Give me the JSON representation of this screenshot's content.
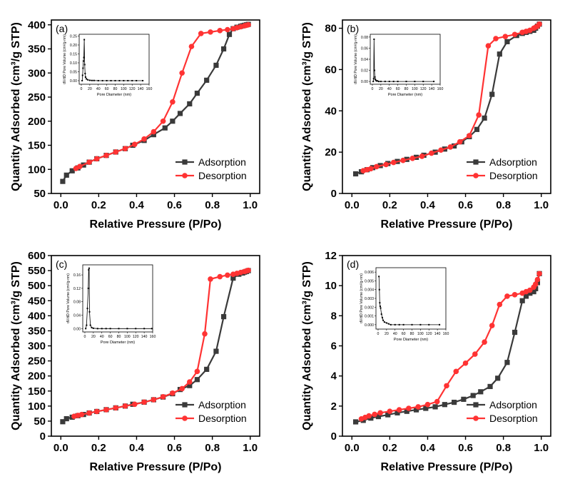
{
  "chart_data": [
    {
      "type": "line",
      "panel_label": "(a)",
      "xlabel": "Relative Pressure (P/Po)",
      "ylabel": "Quantity Adsorbed (cm³/g STP)",
      "xlim": [
        -0.05,
        1.05
      ],
      "ylim": [
        50,
        410
      ],
      "xticks": [
        "0.0",
        "0.2",
        "0.4",
        "0.6",
        "0.8",
        "1.0"
      ],
      "yticks": [
        "50",
        "100",
        "150",
        "200",
        "250",
        "300",
        "350",
        "400"
      ],
      "legend": {
        "position": "bottom-right",
        "entries": [
          "Adsorption",
          "Desorption"
        ]
      },
      "series": [
        {
          "name": "Adsorption",
          "color": "#3a3a3a",
          "marker": "square",
          "x": [
            0.01,
            0.03,
            0.06,
            0.09,
            0.12,
            0.15,
            0.19,
            0.24,
            0.29,
            0.34,
            0.38,
            0.44,
            0.49,
            0.55,
            0.59,
            0.63,
            0.68,
            0.72,
            0.77,
            0.82,
            0.86,
            0.89,
            0.91,
            0.93,
            0.95,
            0.96,
            0.97,
            0.98,
            0.99
          ],
          "y": [
            75,
            88,
            97,
            103,
            109,
            115,
            122,
            129,
            136,
            143,
            150,
            160,
            172,
            186,
            200,
            216,
            236,
            258,
            285,
            316,
            350,
            380,
            392,
            395,
            397,
            398,
            399,
            400,
            401
          ]
        },
        {
          "name": "Desorption",
          "color": "#ff3333",
          "marker": "circle",
          "x": [
            0.08,
            0.1,
            0.15,
            0.19,
            0.24,
            0.29,
            0.34,
            0.39,
            0.44,
            0.49,
            0.54,
            0.59,
            0.64,
            0.69,
            0.74,
            0.79,
            0.84,
            0.88,
            0.91,
            0.93,
            0.95,
            0.97,
            0.98,
            0.99
          ],
          "y": [
            102,
            106,
            115,
            122,
            129,
            136,
            143,
            152,
            163,
            178,
            200,
            240,
            300,
            355,
            382,
            385,
            388,
            390,
            392,
            394,
            396,
            398,
            399,
            400
          ]
        }
      ],
      "inset": {
        "xlabel": "Pore Diameter (nm)",
        "ylabel": "dV/dD Pore Volume (cm³/g·nm)",
        "xlim": [
          -5,
          160
        ],
        "ylim": [
          -0.02,
          0.26
        ],
        "xticks": [
          "0",
          "20",
          "40",
          "60",
          "80",
          "100",
          "120",
          "140",
          "160"
        ],
        "yticks": [
          "0.00",
          "0.05",
          "0.10",
          "0.15",
          "0.20",
          "0.25"
        ],
        "x": [
          2,
          3,
          4,
          5,
          6,
          7,
          8,
          9,
          10,
          12,
          15,
          20,
          25,
          30,
          40,
          50,
          60,
          70,
          80,
          90,
          100,
          110,
          120,
          130,
          145
        ],
        "y": [
          0.0,
          0.03,
          0.07,
          0.11,
          0.13,
          0.23,
          0.09,
          0.04,
          0.02,
          0.01,
          0.005,
          0.002,
          0.001,
          0.001,
          0.0,
          0.0,
          0.0,
          0.0,
          0.0,
          0.0,
          0.0,
          0.0,
          0.0,
          0.0,
          0.0
        ]
      }
    },
    {
      "type": "line",
      "panel_label": "(b)",
      "xlabel": "Relative Pressure (P/Po)",
      "ylabel": "Quantity Adsorbed (cm³/g STP)",
      "xlim": [
        -0.05,
        1.05
      ],
      "ylim": [
        0,
        84
      ],
      "xticks": [
        "0.0",
        "0.2",
        "0.4",
        "0.6",
        "0.8",
        "1.0"
      ],
      "yticks": [
        "0",
        "20",
        "40",
        "60",
        "80"
      ],
      "legend": {
        "position": "bottom-right",
        "entries": [
          "Adsorption",
          "Desorption"
        ]
      },
      "series": [
        {
          "name": "Adsorption",
          "color": "#3a3a3a",
          "marker": "square",
          "x": [
            0.02,
            0.05,
            0.08,
            0.11,
            0.15,
            0.19,
            0.24,
            0.29,
            0.34,
            0.38,
            0.44,
            0.49,
            0.54,
            0.58,
            0.62,
            0.66,
            0.7,
            0.74,
            0.78,
            0.82,
            0.87,
            0.9,
            0.92,
            0.94,
            0.96,
            0.97,
            0.98,
            0.99
          ],
          "y": [
            9.5,
            10.5,
            11.5,
            12.5,
            13.5,
            14.5,
            15.5,
            16.5,
            17.5,
            18.5,
            20.0,
            21.5,
            23.0,
            25.0,
            27.5,
            31.0,
            36.5,
            48.0,
            67.5,
            73.5,
            76.5,
            77.5,
            78.0,
            78.5,
            79.0,
            80.0,
            81.0,
            82.0
          ]
        },
        {
          "name": "Desorption",
          "color": "#ff3333",
          "marker": "circle",
          "x": [
            0.06,
            0.08,
            0.1,
            0.13,
            0.18,
            0.22,
            0.27,
            0.32,
            0.37,
            0.42,
            0.47,
            0.52,
            0.57,
            0.62,
            0.67,
            0.72,
            0.76,
            0.81,
            0.86,
            0.9,
            0.92,
            0.94,
            0.96,
            0.97,
            0.98,
            0.99
          ],
          "y": [
            11.0,
            11.5,
            12.0,
            13.0,
            14.0,
            15.0,
            16.0,
            17.0,
            18.0,
            19.5,
            21.0,
            22.5,
            25.0,
            28.0,
            38.0,
            71.5,
            75.0,
            76.0,
            77.0,
            78.0,
            78.5,
            79.0,
            80.0,
            80.5,
            81.0,
            82.0
          ]
        }
      ],
      "inset": {
        "xlabel": "Pore Diameter (nm)",
        "ylabel": "dV/dD Pore Volume (cm³/g·nm)",
        "xlim": [
          -5,
          160
        ],
        "ylim": [
          -0.005,
          0.085
        ],
        "xticks": [
          "0",
          "20",
          "40",
          "60",
          "80",
          "100",
          "120",
          "140",
          "160"
        ],
        "yticks": [
          "0.00",
          "0.02",
          "0.04",
          "0.06",
          "0.08"
        ],
        "x": [
          2,
          3,
          4,
          5,
          6,
          7,
          8,
          10,
          12,
          15,
          20,
          30,
          40,
          50,
          60,
          80,
          100,
          120,
          145
        ],
        "y": [
          0.0,
          0.005,
          0.076,
          0.02,
          0.008,
          0.004,
          0.002,
          0.001,
          0.001,
          0.0,
          0.0,
          0.0,
          0.0,
          0.0,
          0.0,
          0.0,
          0.0,
          0.0,
          0.0
        ]
      }
    },
    {
      "type": "line",
      "panel_label": "(c)",
      "xlabel": "Relative Pressure (P/Po)",
      "ylabel": "Quantity Adsorbed (cm³/g STP)",
      "xlim": [
        -0.05,
        1.05
      ],
      "ylim": [
        0,
        600
      ],
      "xticks": [
        "0.0",
        "0.2",
        "0.4",
        "0.6",
        "0.8",
        "1.0"
      ],
      "yticks": [
        "0",
        "50",
        "100",
        "150",
        "200",
        "250",
        "300",
        "350",
        "400",
        "450",
        "500",
        "550",
        "600"
      ],
      "legend": {
        "position": "bottom-right",
        "entries": [
          "Adsorption",
          "Desorption"
        ]
      },
      "series": [
        {
          "name": "Adsorption",
          "color": "#3a3a3a",
          "marker": "square",
          "x": [
            0.01,
            0.03,
            0.06,
            0.09,
            0.12,
            0.15,
            0.19,
            0.24,
            0.29,
            0.34,
            0.38,
            0.44,
            0.49,
            0.54,
            0.59,
            0.63,
            0.68,
            0.72,
            0.77,
            0.82,
            0.86,
            0.91,
            0.94,
            0.96,
            0.97,
            0.98,
            0.99
          ],
          "y": [
            48,
            58,
            63,
            68,
            72,
            77,
            82,
            88,
            94,
            100,
            106,
            113,
            121,
            130,
            141,
            155,
            168,
            188,
            222,
            282,
            397,
            525,
            538,
            542,
            545,
            547,
            550
          ]
        },
        {
          "name": "Desorption",
          "color": "#ff3333",
          "marker": "circle",
          "x": [
            0.07,
            0.09,
            0.11,
            0.15,
            0.19,
            0.24,
            0.29,
            0.34,
            0.39,
            0.44,
            0.49,
            0.54,
            0.59,
            0.64,
            0.68,
            0.72,
            0.76,
            0.79,
            0.84,
            0.88,
            0.91,
            0.93,
            0.95,
            0.97,
            0.98,
            0.99
          ],
          "y": [
            66,
            69,
            72,
            77,
            82,
            88,
            94,
            100,
            106,
            113,
            121,
            131,
            143,
            158,
            180,
            215,
            340,
            522,
            530,
            535,
            538,
            541,
            544,
            547,
            549,
            551
          ]
        }
      ],
      "inset": {
        "xlabel": "Pore Diameter (nm)",
        "ylabel": "dV/dD Pore Volume (cm³/g·nm)",
        "xlim": [
          -5,
          160
        ],
        "ylim": [
          -0.01,
          0.19
        ],
        "xticks": [
          "0",
          "20",
          "40",
          "60",
          "80",
          "100",
          "120",
          "140",
          "160"
        ],
        "yticks": [
          "0.00",
          "0.04",
          "0.08",
          "0.12",
          "0.16"
        ],
        "x": [
          2,
          4,
          6,
          8,
          9,
          10,
          11,
          13,
          16,
          20,
          30,
          40,
          50,
          60,
          80,
          100,
          120,
          140,
          158
        ],
        "y": [
          0.0,
          0.01,
          0.06,
          0.12,
          0.175,
          0.18,
          0.05,
          0.01,
          0.003,
          0.001,
          0.0,
          0.0,
          0.0,
          0.0,
          0.0,
          0.0,
          0.0,
          0.0,
          0.0
        ]
      }
    },
    {
      "type": "line",
      "panel_label": "(d)",
      "xlabel": "Relative Pressure (P/Po)",
      "ylabel": "Quantity Adsorbed (cm³/g STP)",
      "xlim": [
        -0.05,
        1.05
      ],
      "ylim": [
        0,
        12
      ],
      "xticks": [
        "0.0",
        "0.2",
        "0.4",
        "0.6",
        "0.8",
        "1.0"
      ],
      "yticks": [
        "0",
        "2",
        "4",
        "6",
        "8",
        "10",
        "12"
      ],
      "legend": {
        "position": "bottom-right",
        "entries": [
          "Adsorption",
          "Desorption"
        ]
      },
      "series": [
        {
          "name": "Adsorption",
          "color": "#3a3a3a",
          "marker": "square",
          "x": [
            0.02,
            0.06,
            0.1,
            0.14,
            0.19,
            0.24,
            0.29,
            0.34,
            0.39,
            0.44,
            0.49,
            0.54,
            0.59,
            0.64,
            0.68,
            0.73,
            0.77,
            0.82,
            0.86,
            0.9,
            0.92,
            0.94,
            0.96,
            0.97,
            0.98,
            0.99
          ],
          "y": [
            0.95,
            1.05,
            1.2,
            1.3,
            1.42,
            1.55,
            1.65,
            1.75,
            1.85,
            1.95,
            2.1,
            2.25,
            2.45,
            2.7,
            2.95,
            3.3,
            3.85,
            4.9,
            6.9,
            9.0,
            9.3,
            9.5,
            9.6,
            9.8,
            10.2,
            10.8
          ]
        },
        {
          "name": "Desorption",
          "color": "#ff3333",
          "marker": "circle",
          "x": [
            0.05,
            0.07,
            0.09,
            0.12,
            0.15,
            0.2,
            0.25,
            0.3,
            0.35,
            0.4,
            0.45,
            0.5,
            0.55,
            0.6,
            0.65,
            0.7,
            0.74,
            0.78,
            0.82,
            0.86,
            0.9,
            0.92,
            0.94,
            0.96,
            0.97,
            0.98,
            0.99
          ],
          "y": [
            1.15,
            1.25,
            1.35,
            1.45,
            1.55,
            1.65,
            1.75,
            1.85,
            1.95,
            2.1,
            2.3,
            3.35,
            4.3,
            4.85,
            5.45,
            6.25,
            7.35,
            8.75,
            9.3,
            9.4,
            9.5,
            9.6,
            9.7,
            9.9,
            10.1,
            10.4,
            10.8
          ]
        }
      ],
      "inset": {
        "xlabel": "Pore Diameter (nm)",
        "ylabel": "dV/dD Pore Volume (cm³/g·nm)",
        "xlim": [
          -5,
          160
        ],
        "ylim": [
          -0.0005,
          0.0065
        ],
        "xticks": [
          "0",
          "20",
          "40",
          "60",
          "80",
          "100",
          "120",
          "140",
          "160"
        ],
        "yticks": [
          "0.000",
          "0.001",
          "0.002",
          "0.003",
          "0.004",
          "0.005",
          "0.006"
        ],
        "x": [
          2,
          3,
          4,
          5,
          6,
          8,
          10,
          12,
          15,
          20,
          25,
          30,
          40,
          50,
          60,
          80,
          100,
          120,
          145
        ],
        "y": [
          0.0055,
          0.004,
          0.0025,
          0.0021,
          0.0019,
          0.0012,
          0.0008,
          0.0005,
          0.0003,
          0.0002,
          0.0001,
          0.0,
          0.0,
          0.0,
          0.0,
          0.0,
          0.0,
          0.0,
          0.0
        ]
      }
    }
  ]
}
